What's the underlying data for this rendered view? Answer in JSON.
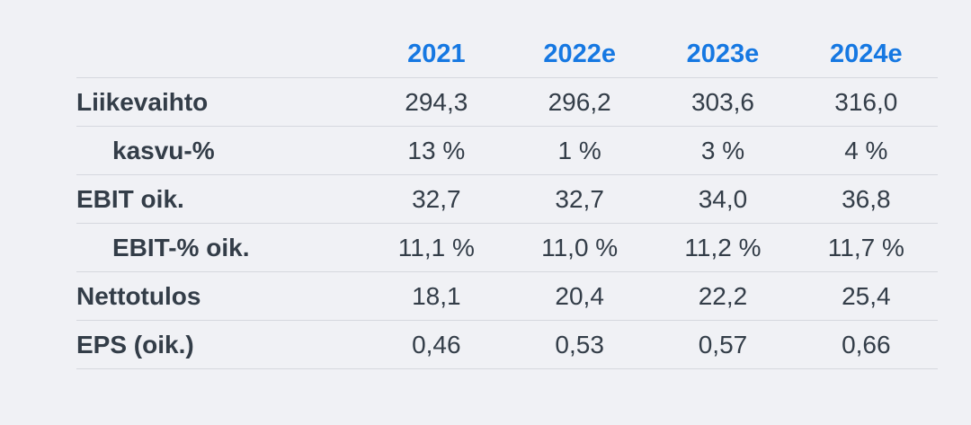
{
  "colors": {
    "background": "#f0f1f5",
    "header_text": "#1678e2",
    "body_text": "#333d48",
    "divider": "#d5d8de"
  },
  "table": {
    "columns": [
      "2021",
      "2022e",
      "2023e",
      "2024e"
    ],
    "rows": [
      {
        "label": "Liikevaihto",
        "indent": false,
        "values": [
          "294,3",
          "296,2",
          "303,6",
          "316,0"
        ]
      },
      {
        "label": "kasvu-%",
        "indent": true,
        "values": [
          "13 %",
          "1 %",
          "3 %",
          "4 %"
        ]
      },
      {
        "label": "EBIT oik.",
        "indent": false,
        "values": [
          "32,7",
          "32,7",
          "34,0",
          "36,8"
        ]
      },
      {
        "label": "EBIT-% oik.",
        "indent": true,
        "values": [
          "11,1 %",
          "11,0 %",
          "11,2 %",
          "11,7 %"
        ]
      },
      {
        "label": "Nettotulos",
        "indent": false,
        "values": [
          "18,1",
          "20,4",
          "22,2",
          "25,4"
        ]
      },
      {
        "label": "EPS (oik.)",
        "indent": false,
        "values": [
          "0,46",
          "0,53",
          "0,57",
          "0,66"
        ]
      }
    ]
  },
  "chart_data": {
    "type": "table",
    "categories": [
      "2021",
      "2022e",
      "2023e",
      "2024e"
    ],
    "series": [
      {
        "name": "Liikevaihto",
        "values": [
          294.3,
          296.2,
          303.6,
          316.0
        ]
      },
      {
        "name": "kasvu-%",
        "values": [
          13,
          1,
          3,
          4
        ],
        "unit": "%"
      },
      {
        "name": "EBIT oik.",
        "values": [
          32.7,
          32.7,
          34.0,
          36.8
        ]
      },
      {
        "name": "EBIT-% oik.",
        "values": [
          11.1,
          11.0,
          11.2,
          11.7
        ],
        "unit": "%"
      },
      {
        "name": "Nettotulos",
        "values": [
          18.1,
          20.4,
          22.2,
          25.4
        ]
      },
      {
        "name": "EPS (oik.)",
        "values": [
          0.46,
          0.53,
          0.57,
          0.66
        ]
      }
    ],
    "title": "",
    "xlabel": "",
    "ylabel": "",
    "legend_position": "none",
    "grid": "row-dividers-only"
  }
}
